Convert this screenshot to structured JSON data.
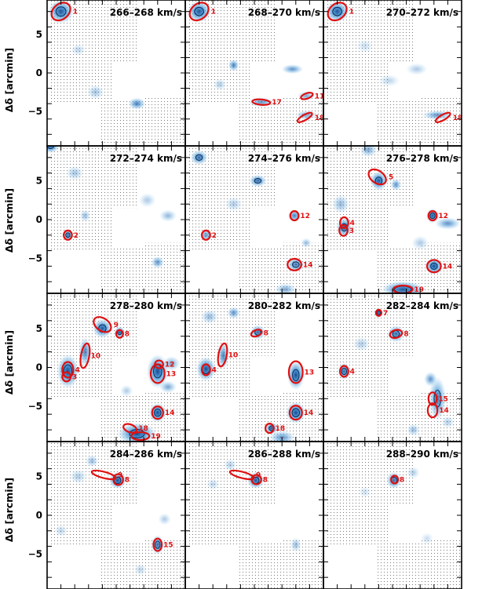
{
  "chart_data": {
    "type": "channel-map",
    "ylabel": "Δδ [arcmin]",
    "xlabel": "",
    "y_ticks": [
      5,
      0,
      -5
    ],
    "y_tick_labels": [
      "5",
      "0",
      "−5"
    ],
    "ylim": [
      -9.5,
      9.5
    ],
    "xlim": [
      10,
      -10
    ],
    "colors": {
      "emission": "#1f78c8",
      "contour": "#0b2a55",
      "region": "#e01010",
      "grid_dot": "#7a7a7a",
      "frame": "#000000"
    },
    "panels": [
      {
        "label": "266–268 km/s",
        "blobs": [
          [
            8.0,
            8.0,
            1.2,
            1.0,
            0.9
          ],
          [
            -3.0,
            -4.0,
            0.8,
            0.5,
            0.7
          ],
          [
            3.0,
            -2.5,
            0.8,
            0.6,
            0.35
          ],
          [
            5.5,
            3.0,
            0.7,
            0.5,
            0.25
          ]
        ],
        "regions": [
          {
            "id": "1",
            "x": 8.0,
            "y": 8.0,
            "a": 1.5,
            "b": 1.0,
            "angle": -40
          }
        ]
      },
      {
        "label": "268–270 km/s",
        "blobs": [
          [
            8.0,
            8.0,
            1.1,
            0.9,
            0.9
          ],
          [
            3.0,
            1.0,
            0.5,
            0.5,
            0.7
          ],
          [
            -1.0,
            -3.8,
            1.2,
            0.4,
            0.6
          ],
          [
            -5.5,
            0.5,
            1.0,
            0.4,
            0.6
          ],
          [
            -7.5,
            -3.0,
            0.8,
            0.4,
            0.5
          ],
          [
            -7.5,
            -5.5,
            1.0,
            0.4,
            0.5
          ],
          [
            5.0,
            -1.5,
            0.6,
            0.5,
            0.3
          ]
        ],
        "regions": [
          {
            "id": "1",
            "x": 8.0,
            "y": 8.0,
            "a": 1.5,
            "b": 1.0,
            "angle": -40
          },
          {
            "id": "17",
            "x": -1.0,
            "y": -3.8,
            "a": 1.3,
            "b": 0.35,
            "angle": 5
          },
          {
            "id": "11",
            "x": -7.6,
            "y": -3.0,
            "a": 0.9,
            "b": 0.35,
            "angle": -20
          },
          {
            "id": "18",
            "x": -7.3,
            "y": -5.8,
            "a": 1.2,
            "b": 0.35,
            "angle": -30
          }
        ]
      },
      {
        "label": "270–272 km/s",
        "blobs": [
          [
            8.0,
            8.0,
            1.1,
            0.9,
            0.9
          ],
          [
            -6.5,
            -5.5,
            1.4,
            0.4,
            0.6
          ],
          [
            -3.5,
            0.5,
            1.0,
            0.5,
            0.3
          ],
          [
            4.0,
            3.5,
            0.8,
            0.6,
            0.2
          ],
          [
            0.5,
            -1.0,
            1.0,
            0.5,
            0.25
          ]
        ],
        "regions": [
          {
            "id": "1",
            "x": 8.0,
            "y": 8.0,
            "a": 1.5,
            "b": 1.0,
            "angle": -40
          },
          {
            "id": "18",
            "x": -7.3,
            "y": -5.8,
            "a": 1.2,
            "b": 0.35,
            "angle": -30
          }
        ]
      },
      {
        "label": "272–274 km/s",
        "blobs": [
          [
            9.5,
            9.5,
            0.8,
            0.6,
            0.9
          ],
          [
            7.0,
            -2.0,
            0.5,
            0.5,
            0.8
          ],
          [
            6.0,
            6.0,
            0.8,
            0.6,
            0.35
          ],
          [
            -6.0,
            -5.5,
            0.6,
            0.5,
            0.6
          ],
          [
            -7.5,
            0.5,
            0.8,
            0.5,
            0.4
          ],
          [
            -4.5,
            2.5,
            0.8,
            0.6,
            0.3
          ],
          [
            4.5,
            0.5,
            0.5,
            0.5,
            0.4
          ]
        ],
        "regions": [
          {
            "id": "2",
            "x": 7.0,
            "y": -2.0,
            "a": 0.6,
            "b": 0.6,
            "angle": 0
          }
        ]
      },
      {
        "label": "274–276 km/s",
        "blobs": [
          [
            8.0,
            8.0,
            0.8,
            0.6,
            0.8
          ],
          [
            7.0,
            -2.0,
            0.6,
            0.5,
            0.6
          ],
          [
            -0.5,
            5.0,
            0.8,
            0.5,
            0.8
          ],
          [
            -5.8,
            0.5,
            0.6,
            0.5,
            0.7
          ],
          [
            -6.0,
            -5.8,
            0.8,
            0.6,
            0.75
          ],
          [
            -7.5,
            -3.0,
            0.5,
            0.4,
            0.4
          ],
          [
            -4.5,
            -9.0,
            1.0,
            0.5,
            0.5
          ],
          [
            3.0,
            2.0,
            0.8,
            0.6,
            0.3
          ]
        ],
        "regions": [
          {
            "id": "2",
            "x": 7.0,
            "y": -2.0,
            "a": 0.6,
            "b": 0.6,
            "angle": 0
          },
          {
            "id": "12",
            "x": -5.8,
            "y": 0.5,
            "a": 0.6,
            "b": 0.6,
            "angle": 0
          },
          {
            "id": "14",
            "x": -5.8,
            "y": -5.8,
            "a": 1.0,
            "b": 0.75,
            "angle": 0
          }
        ]
      },
      {
        "label": "276–278 km/s",
        "blobs": [
          [
            2.0,
            5.0,
            0.8,
            0.8,
            0.9
          ],
          [
            7.0,
            -1.0,
            0.7,
            0.8,
            0.9
          ],
          [
            -5.8,
            0.5,
            0.6,
            0.6,
            0.9
          ],
          [
            -6.0,
            -6.0,
            0.8,
            0.7,
            0.95
          ],
          [
            -1.5,
            -9.0,
            2.0,
            0.7,
            0.9
          ],
          [
            -8.0,
            -0.5,
            1.2,
            0.5,
            0.6
          ],
          [
            -0.5,
            4.5,
            0.5,
            0.5,
            0.6
          ],
          [
            3.5,
            9.0,
            0.8,
            0.6,
            0.5
          ],
          [
            7.5,
            2.0,
            0.8,
            0.8,
            0.4
          ],
          [
            -4.0,
            -3.0,
            0.8,
            0.6,
            0.3
          ]
        ],
        "regions": [
          {
            "id": "5",
            "x": 2.2,
            "y": 5.5,
            "a": 1.4,
            "b": 0.8,
            "angle": 35
          },
          {
            "id": "4",
            "x": 7.0,
            "y": -0.4,
            "a": 0.6,
            "b": 0.7,
            "angle": 0
          },
          {
            "id": "3",
            "x": 7.1,
            "y": -1.4,
            "a": 0.6,
            "b": 0.7,
            "angle": 0
          },
          {
            "id": "12",
            "x": -5.8,
            "y": 0.5,
            "a": 0.6,
            "b": 0.6,
            "angle": 0
          },
          {
            "id": "14",
            "x": -6.0,
            "y": -6.0,
            "a": 1.0,
            "b": 0.8,
            "angle": 0
          },
          {
            "id": "19",
            "x": -1.5,
            "y": -9.0,
            "a": 1.4,
            "b": 0.5,
            "angle": 0
          }
        ]
      },
      {
        "label": "278–280 km/s",
        "blobs": [
          [
            2.0,
            5.0,
            0.9,
            0.8,
            0.9
          ],
          [
            7.0,
            -0.5,
            1.0,
            1.4,
            0.95
          ],
          [
            4.5,
            2.0,
            0.6,
            1.2,
            0.7
          ],
          [
            -0.5,
            4.5,
            0.5,
            0.5,
            0.9
          ],
          [
            -6.0,
            -0.5,
            1.0,
            1.4,
            0.95
          ],
          [
            -6.0,
            -5.8,
            0.8,
            0.8,
            0.95
          ],
          [
            -3.0,
            -8.5,
            1.8,
            0.9,
            0.95
          ],
          [
            -7.5,
            -2.5,
            0.8,
            0.5,
            0.5
          ],
          [
            -8.0,
            0.5,
            0.8,
            0.6,
            0.5
          ],
          [
            -1.5,
            -3.0,
            0.6,
            0.5,
            0.3
          ]
        ],
        "regions": [
          {
            "id": "9",
            "x": 2.0,
            "y": 5.5,
            "a": 1.4,
            "b": 0.8,
            "angle": 35
          },
          {
            "id": "8",
            "x": -0.5,
            "y": 4.3,
            "a": 0.5,
            "b": 0.5,
            "angle": 0
          },
          {
            "id": "10",
            "x": 4.5,
            "y": 1.5,
            "a": 0.6,
            "b": 1.6,
            "angle": 10
          },
          {
            "id": "4",
            "x": 7.0,
            "y": -0.3,
            "a": 0.8,
            "b": 1.0,
            "angle": 0
          },
          {
            "id": "3",
            "x": 7.2,
            "y": -1.2,
            "a": 0.6,
            "b": 0.6,
            "angle": 0
          },
          {
            "id": "12",
            "x": -6.2,
            "y": 0.4,
            "a": 0.6,
            "b": 0.5,
            "angle": 0
          },
          {
            "id": "13",
            "x": -6.0,
            "y": -0.8,
            "a": 1.0,
            "b": 1.2,
            "angle": 0
          },
          {
            "id": "14",
            "x": -6.0,
            "y": -5.8,
            "a": 0.8,
            "b": 0.8,
            "angle": 0
          },
          {
            "id": "18",
            "x": -2.0,
            "y": -7.8,
            "a": 1.0,
            "b": 0.5,
            "angle": 20
          },
          {
            "id": "19",
            "x": -3.5,
            "y": -8.8,
            "a": 1.3,
            "b": 0.5,
            "angle": 0
          }
        ]
      },
      {
        "label": "280–282 km/s",
        "blobs": [
          [
            7.0,
            -0.2,
            0.9,
            1.0,
            0.95
          ],
          [
            4.5,
            1.5,
            0.5,
            1.1,
            0.7
          ],
          [
            -0.5,
            4.5,
            0.7,
            0.6,
            0.8
          ],
          [
            3.0,
            7.0,
            0.6,
            0.5,
            0.6
          ],
          [
            -6.0,
            -1.0,
            0.8,
            1.2,
            0.95
          ],
          [
            -6.0,
            -5.8,
            0.9,
            0.9,
            0.95
          ],
          [
            -2.5,
            -7.8,
            0.6,
            0.5,
            0.9
          ],
          [
            -4.0,
            -9.0,
            1.2,
            0.6,
            0.6
          ],
          [
            6.5,
            6.5,
            0.8,
            0.6,
            0.4
          ]
        ],
        "regions": [
          {
            "id": "8",
            "x": -0.3,
            "y": 4.4,
            "a": 0.8,
            "b": 0.4,
            "angle": -20
          },
          {
            "id": "10",
            "x": 4.6,
            "y": 1.6,
            "a": 0.6,
            "b": 1.5,
            "angle": 10
          },
          {
            "id": "4",
            "x": 7.0,
            "y": -0.3,
            "a": 0.6,
            "b": 0.7,
            "angle": 0
          },
          {
            "id": "13",
            "x": -6.0,
            "y": -0.6,
            "a": 1.0,
            "b": 1.4,
            "angle": 0
          },
          {
            "id": "14",
            "x": -6.0,
            "y": -5.8,
            "a": 0.9,
            "b": 0.9,
            "angle": 0
          },
          {
            "id": "18",
            "x": -2.2,
            "y": -7.8,
            "a": 0.6,
            "b": 0.6,
            "angle": 0
          }
        ]
      },
      {
        "label": "282–284 km/s",
        "blobs": [
          [
            2.0,
            7.0,
            0.4,
            0.4,
            0.9
          ],
          [
            -0.5,
            4.3,
            0.8,
            0.7,
            0.8
          ],
          [
            7.0,
            -0.5,
            0.6,
            0.7,
            0.8
          ],
          [
            -6.5,
            -4.0,
            0.8,
            1.8,
            0.75
          ],
          [
            -5.5,
            -1.5,
            0.6,
            0.6,
            0.6
          ],
          [
            -3.0,
            -8.0,
            0.6,
            0.5,
            0.4
          ],
          [
            4.5,
            3.0,
            0.8,
            0.6,
            0.3
          ],
          [
            -8.0,
            -7.0,
            0.6,
            0.5,
            0.3
          ]
        ],
        "regions": [
          {
            "id": "7",
            "x": 2.0,
            "y": 7.0,
            "a": 0.4,
            "b": 0.4,
            "angle": 0
          },
          {
            "id": "8",
            "x": -0.5,
            "y": 4.3,
            "a": 0.9,
            "b": 0.5,
            "angle": -15
          },
          {
            "id": "4",
            "x": 7.0,
            "y": -0.5,
            "a": 0.6,
            "b": 0.7,
            "angle": 0
          },
          {
            "id": "15",
            "x": -5.8,
            "y": -4.0,
            "a": 0.6,
            "b": 0.8,
            "angle": 0
          },
          {
            "id": "14",
            "x": -5.8,
            "y": -5.5,
            "a": 0.7,
            "b": 0.9,
            "angle": 0
          }
        ]
      },
      {
        "label": "284–286 km/s",
        "blobs": [
          [
            -0.2,
            4.5,
            0.8,
            0.7,
            0.95
          ],
          [
            -6.0,
            -3.8,
            0.6,
            0.8,
            0.8
          ],
          [
            3.5,
            7.0,
            0.6,
            0.5,
            0.4
          ],
          [
            5.5,
            5.0,
            0.8,
            0.6,
            0.3
          ],
          [
            -7.0,
            -0.5,
            0.6,
            0.5,
            0.3
          ],
          [
            -3.5,
            -7.0,
            0.6,
            0.5,
            0.25
          ],
          [
            8.0,
            -2.0,
            0.6,
            0.5,
            0.25
          ]
        ],
        "regions": [
          {
            "id": "9",
            "x": 1.8,
            "y": 5.2,
            "a": 1.8,
            "b": 0.4,
            "angle": 15
          },
          {
            "id": "8",
            "x": -0.3,
            "y": 4.6,
            "a": 0.7,
            "b": 0.7,
            "angle": 0
          },
          {
            "id": "15",
            "x": -6.0,
            "y": -3.8,
            "a": 0.6,
            "b": 0.8,
            "angle": 0
          }
        ]
      },
      {
        "label": "286–288 km/s",
        "blobs": [
          [
            -0.2,
            4.5,
            0.8,
            0.7,
            0.9
          ],
          [
            -6.0,
            -3.8,
            0.5,
            0.6,
            0.4
          ],
          [
            3.5,
            6.5,
            0.6,
            0.5,
            0.3
          ],
          [
            6.0,
            4.0,
            0.6,
            0.5,
            0.25
          ]
        ],
        "regions": [
          {
            "id": "9",
            "x": 1.8,
            "y": 5.2,
            "a": 1.8,
            "b": 0.4,
            "angle": 15
          },
          {
            "id": "8",
            "x": -0.3,
            "y": 4.6,
            "a": 0.7,
            "b": 0.6,
            "angle": 0
          }
        ]
      },
      {
        "label": "288–290 km/s",
        "blobs": [
          [
            -0.2,
            4.5,
            0.7,
            0.7,
            0.8
          ],
          [
            -3.0,
            5.5,
            0.6,
            0.5,
            0.3
          ],
          [
            4.0,
            3.0,
            0.6,
            0.5,
            0.2
          ],
          [
            -5.0,
            -3.0,
            0.6,
            0.5,
            0.2
          ]
        ],
        "regions": [
          {
            "id": "8",
            "x": -0.3,
            "y": 4.6,
            "a": 0.5,
            "b": 0.5,
            "angle": 0
          }
        ]
      }
    ]
  }
}
